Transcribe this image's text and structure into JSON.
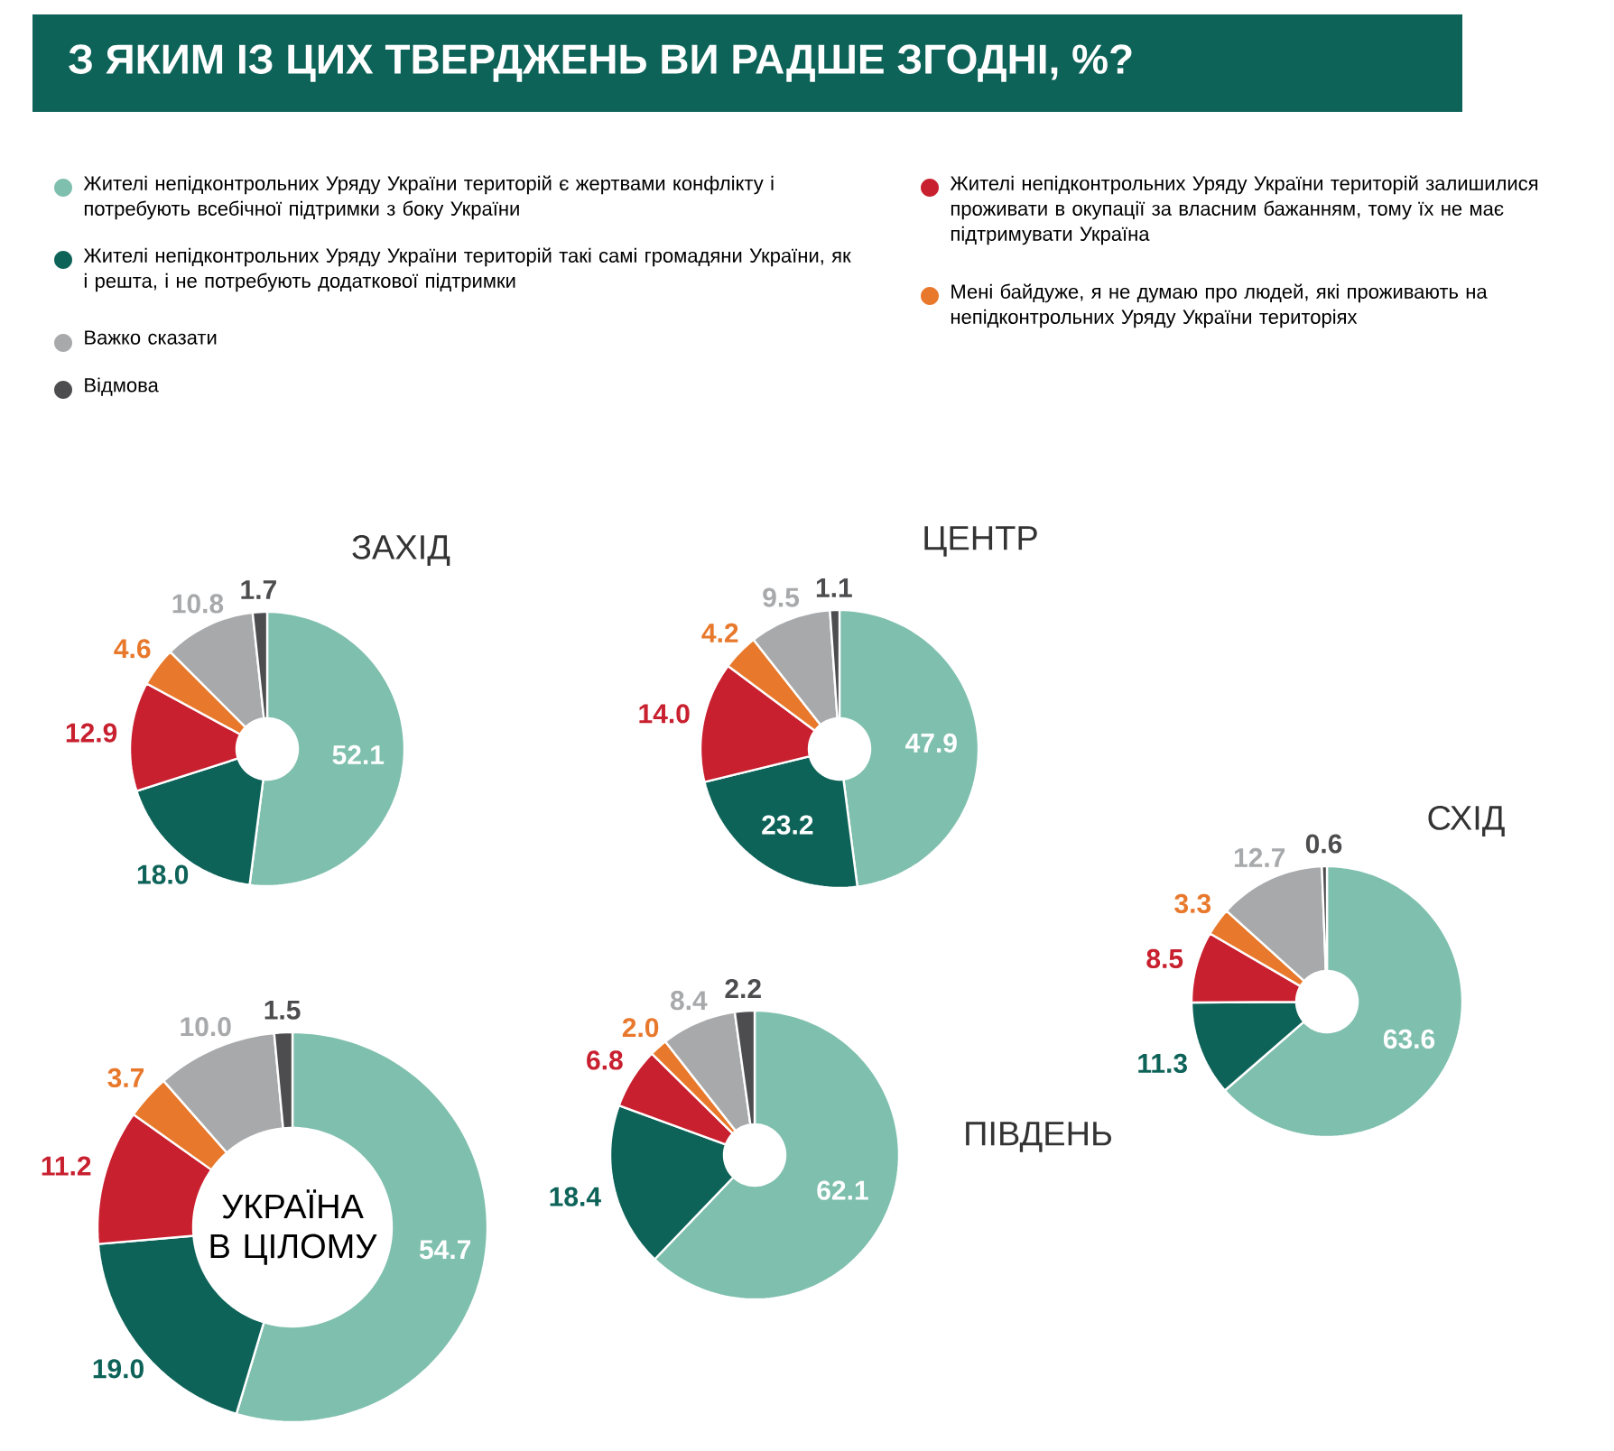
{
  "chart_data": [
    {
      "type": "other",
      "title": "З ЯКИМ ІЗ ЦИХ ТВЕРДЖЕНЬ ВИ РАДШЕ ЗГОДНІ, %?"
    },
    {
      "type": "donut",
      "title": "ЗАХІД",
      "categories": [
        "Жителі непідконтрольних Уряду України територій є жертвами конфлікту і потребують всебічної підтримки з боку України",
        "Жителі непідконтрольних Уряду України територій такі самі громадяни України, як і решта, і не потребують додаткової підтримки",
        "Жителі непідконтрольних Уряду України територій залишилися проживати в окупації за власним бажанням, тому їх не має підтримувати Україна",
        "Мені байдуже, я не думаю про людей, які проживають на непідконтрольних Уряду України територіях",
        "Важко сказати",
        "Відмова"
      ],
      "values": [
        52.1,
        18.0,
        12.9,
        4.6,
        10.8,
        1.7
      ],
      "value_labels": [
        "52.1",
        "18.0",
        "12.9",
        "4.6",
        "10.8",
        "1.7"
      ],
      "colors": [
        "#7fbfae",
        "#0e6359",
        "#c8202f",
        "#e8782b",
        "#a7a9ab",
        "#4d4d4f"
      ],
      "legend": "top"
    },
    {
      "type": "donut",
      "title": "ЦЕНТР",
      "categories": [
        null,
        null,
        null,
        null,
        null,
        null
      ],
      "values": [
        47.9,
        23.2,
        14.0,
        4.2,
        9.5,
        1.1
      ],
      "value_labels": [
        "47.9",
        "23.2",
        "14.0",
        "4.2",
        "9.5",
        "1.1"
      ],
      "colors": [
        "#7fbfae",
        "#0e6359",
        "#c8202f",
        "#e8782b",
        "#a7a9ab",
        "#4d4d4f"
      ]
    },
    {
      "type": "donut",
      "title": "СХІД",
      "categories": [
        null,
        null,
        null,
        null,
        null,
        null
      ],
      "values": [
        63.6,
        11.3,
        8.5,
        3.3,
        12.7,
        0.6
      ],
      "value_labels": [
        "63.6",
        "11.3",
        "8.5",
        "3.3",
        "12.7",
        "0.6"
      ],
      "colors": [
        "#7fbfae",
        "#0e6359",
        "#c8202f",
        "#e8782b",
        "#a7a9ab",
        "#4d4d4f"
      ]
    },
    {
      "type": "donut",
      "title": "УКРАЇНА В ЦІЛОМУ",
      "categories": [
        null,
        null,
        null,
        null,
        null,
        null
      ],
      "values": [
        54.7,
        19.0,
        11.2,
        3.7,
        10.0,
        1.5
      ],
      "value_labels": [
        "54.7",
        "19.0",
        "11.2",
        "3.7",
        "10.0",
        "1.5"
      ],
      "colors": [
        "#7fbfae",
        "#0e6359",
        "#c8202f",
        "#e8782b",
        "#a7a9ab",
        "#4d4d4f"
      ]
    },
    {
      "type": "donut",
      "title": "ПІВДЕНЬ",
      "categories": [
        null,
        null,
        null,
        null,
        null,
        null
      ],
      "values": [
        62.1,
        18.4,
        6.8,
        2.0,
        8.4,
        2.2
      ],
      "value_labels": [
        "62.1",
        "18.4",
        "6.8",
        "2.0",
        "8.4",
        "2.2"
      ],
      "colors": [
        "#7fbfae",
        "#0e6359",
        "#c8202f",
        "#e8782b",
        "#a7a9ab",
        "#4d4d4f"
      ]
    }
  ]
}
